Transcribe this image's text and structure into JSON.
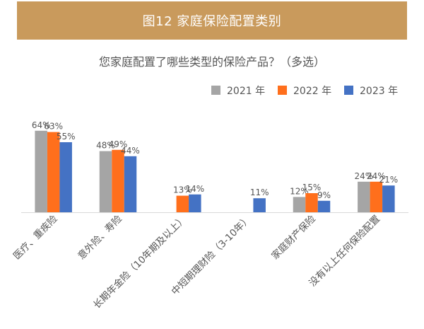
{
  "banner": {
    "title": "图12 家庭保险配置类别"
  },
  "chart_data": {
    "type": "bar",
    "title": "您家庭配置了哪些类型的保险产品？（多选）",
    "categories": [
      "医疗、重疾险",
      "意外险、寿险",
      "长期年金险（10年期及以上）",
      "中短期理财险（3-10年）",
      "家庭财产保险",
      "没有以上任何保险配置"
    ],
    "series": [
      {
        "name": "2021 年",
        "color": "#a5a5a5",
        "values": [
          64,
          48,
          null,
          null,
          12,
          24
        ],
        "labels": [
          "64%",
          "48%",
          "",
          "",
          "12%",
          "24%"
        ]
      },
      {
        "name": "2022 年",
        "color": "#ff6f1c",
        "values": [
          63,
          49,
          13,
          null,
          15,
          24
        ],
        "labels": [
          "63%",
          "49%",
          "13%",
          "",
          "15%",
          "24%"
        ]
      },
      {
        "name": "2023 年",
        "color": "#4472c4",
        "values": [
          55,
          44,
          14,
          11,
          9,
          21
        ],
        "labels": [
          "55%",
          "44%",
          "14%",
          "11%",
          "9%",
          "21%"
        ]
      }
    ],
    "ylim": [
      0,
      70
    ],
    "legend_position": "top-right",
    "grid": false
  }
}
